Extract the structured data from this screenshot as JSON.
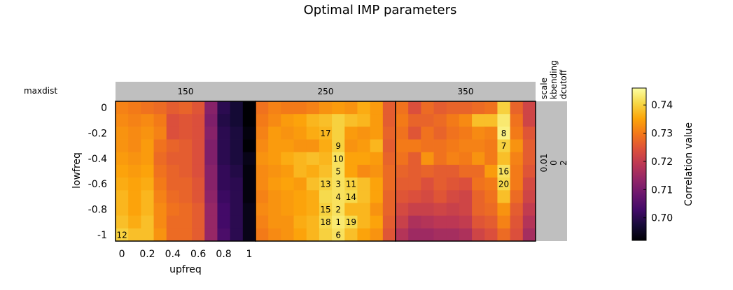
{
  "chart_data": {
    "type": "heatmap",
    "title": "Optimal IMP parameters",
    "xlabel": "upfreq",
    "ylabel": "lowfreq",
    "x_ticks": [
      "0",
      "0.2",
      "0.4",
      "0.6",
      "0.8",
      "1"
    ],
    "y_ticks": [
      "0",
      "-0.2",
      "-0.4",
      "-0.6",
      "-0.8",
      "-1"
    ],
    "x_range": [
      0,
      1
    ],
    "y_range": [
      -1,
      0
    ],
    "facet_row_header": "maxdist",
    "facets": [
      "150",
      "250",
      "350"
    ],
    "right_strip_headers": [
      "scale",
      "kbending",
      "dcutoff"
    ],
    "right_strip_values": [
      "0.01",
      "0",
      "2"
    ],
    "colorbar": {
      "label": "Correlation value",
      "range": [
        0.692,
        0.746
      ],
      "ticks": [
        "0.70",
        "0.71",
        "0.72",
        "0.73",
        "0.74"
      ],
      "tick_values": [
        0.7,
        0.71,
        0.72,
        0.73,
        0.74
      ],
      "colormap": "inferno"
    },
    "panels": [
      {
        "maxdist": "150",
        "values": [
          [
            0.731,
            0.73,
            0.729,
            0.728,
            0.726,
            0.727,
            0.725,
            0.712,
            0.7,
            0.697,
            0.692
          ],
          [
            0.732,
            0.731,
            0.732,
            0.73,
            0.724,
            0.725,
            0.724,
            0.711,
            0.699,
            0.697,
            0.692
          ],
          [
            0.733,
            0.732,
            0.733,
            0.731,
            0.724,
            0.725,
            0.724,
            0.712,
            0.7,
            0.698,
            0.693
          ],
          [
            0.733,
            0.732,
            0.734,
            0.729,
            0.727,
            0.726,
            0.724,
            0.711,
            0.7,
            0.698,
            0.692
          ],
          [
            0.734,
            0.733,
            0.734,
            0.728,
            0.726,
            0.726,
            0.724,
            0.711,
            0.7,
            0.698,
            0.694
          ],
          [
            0.735,
            0.734,
            0.735,
            0.729,
            0.727,
            0.726,
            0.724,
            0.712,
            0.701,
            0.699,
            0.693
          ],
          [
            0.736,
            0.735,
            0.736,
            0.73,
            0.727,
            0.727,
            0.725,
            0.712,
            0.701,
            0.7,
            0.693
          ],
          [
            0.737,
            0.735,
            0.737,
            0.731,
            0.728,
            0.727,
            0.725,
            0.713,
            0.702,
            0.7,
            0.693
          ],
          [
            0.737,
            0.735,
            0.737,
            0.732,
            0.729,
            0.728,
            0.726,
            0.714,
            0.703,
            0.7,
            0.694
          ],
          [
            0.738,
            0.736,
            0.738,
            0.732,
            0.728,
            0.728,
            0.726,
            0.714,
            0.703,
            0.7,
            0.694
          ],
          [
            0.74,
            0.738,
            0.738,
            0.733,
            0.728,
            0.728,
            0.726,
            0.714,
            0.704,
            0.7,
            0.694
          ]
        ]
      },
      {
        "maxdist": "250",
        "values": [
          [
            0.729,
            0.731,
            0.73,
            0.73,
            0.731,
            0.733,
            0.734,
            0.733,
            0.736,
            0.734,
            0.726
          ],
          [
            0.73,
            0.732,
            0.734,
            0.735,
            0.737,
            0.738,
            0.74,
            0.738,
            0.737,
            0.734,
            0.726
          ],
          [
            0.731,
            0.734,
            0.733,
            0.734,
            0.736,
            0.737,
            0.74,
            0.734,
            0.733,
            0.734,
            0.727
          ],
          [
            0.732,
            0.734,
            0.734,
            0.733,
            0.733,
            0.736,
            0.74,
            0.733,
            0.734,
            0.737,
            0.726
          ],
          [
            0.733,
            0.734,
            0.736,
            0.737,
            0.738,
            0.737,
            0.742,
            0.735,
            0.735,
            0.734,
            0.727
          ],
          [
            0.732,
            0.733,
            0.734,
            0.737,
            0.736,
            0.738,
            0.742,
            0.735,
            0.732,
            0.733,
            0.728
          ],
          [
            0.732,
            0.734,
            0.735,
            0.734,
            0.738,
            0.74,
            0.742,
            0.74,
            0.738,
            0.735,
            0.728
          ],
          [
            0.731,
            0.733,
            0.734,
            0.735,
            0.736,
            0.741,
            0.742,
            0.741,
            0.738,
            0.735,
            0.727
          ],
          [
            0.732,
            0.733,
            0.734,
            0.735,
            0.736,
            0.74,
            0.742,
            0.737,
            0.737,
            0.733,
            0.727
          ],
          [
            0.731,
            0.733,
            0.733,
            0.736,
            0.737,
            0.741,
            0.743,
            0.741,
            0.737,
            0.735,
            0.726
          ],
          [
            0.73,
            0.732,
            0.733,
            0.735,
            0.737,
            0.74,
            0.742,
            0.738,
            0.735,
            0.733,
            0.725
          ]
        ]
      },
      {
        "maxdist": "350",
        "values": [
          [
            0.729,
            0.724,
            0.728,
            0.726,
            0.727,
            0.727,
            0.728,
            0.729,
            0.74,
            0.727,
            0.722
          ],
          [
            0.73,
            0.727,
            0.727,
            0.728,
            0.73,
            0.732,
            0.738,
            0.738,
            0.743,
            0.729,
            0.722
          ],
          [
            0.729,
            0.725,
            0.729,
            0.727,
            0.729,
            0.73,
            0.732,
            0.731,
            0.744,
            0.73,
            0.725
          ],
          [
            0.73,
            0.73,
            0.729,
            0.729,
            0.73,
            0.731,
            0.731,
            0.73,
            0.74,
            0.733,
            0.726
          ],
          [
            0.729,
            0.726,
            0.733,
            0.729,
            0.731,
            0.73,
            0.733,
            0.73,
            0.738,
            0.731,
            0.726
          ],
          [
            0.727,
            0.726,
            0.727,
            0.726,
            0.726,
            0.728,
            0.728,
            0.734,
            0.742,
            0.73,
            0.725
          ],
          [
            0.726,
            0.726,
            0.724,
            0.726,
            0.725,
            0.724,
            0.729,
            0.73,
            0.741,
            0.73,
            0.723
          ],
          [
            0.725,
            0.724,
            0.723,
            0.725,
            0.723,
            0.722,
            0.727,
            0.729,
            0.738,
            0.728,
            0.722
          ],
          [
            0.723,
            0.721,
            0.721,
            0.722,
            0.721,
            0.722,
            0.727,
            0.728,
            0.733,
            0.726,
            0.72
          ],
          [
            0.721,
            0.717,
            0.718,
            0.719,
            0.719,
            0.72,
            0.725,
            0.726,
            0.731,
            0.725,
            0.718
          ],
          [
            0.718,
            0.715,
            0.715,
            0.716,
            0.716,
            0.717,
            0.722,
            0.724,
            0.728,
            0.724,
            0.716
          ]
        ]
      }
    ],
    "annotations": [
      {
        "panel": 0,
        "x": 0.0,
        "y": -1.0,
        "text": "12"
      },
      {
        "panel": 1,
        "x": 0.5,
        "y": -0.2,
        "text": "17"
      },
      {
        "panel": 1,
        "x": 0.6,
        "y": -0.3,
        "text": "9"
      },
      {
        "panel": 1,
        "x": 0.6,
        "y": -0.4,
        "text": "10"
      },
      {
        "panel": 1,
        "x": 0.6,
        "y": -0.5,
        "text": "5"
      },
      {
        "panel": 1,
        "x": 0.5,
        "y": -0.6,
        "text": "13"
      },
      {
        "panel": 1,
        "x": 0.6,
        "y": -0.6,
        "text": "3"
      },
      {
        "panel": 1,
        "x": 0.7,
        "y": -0.6,
        "text": "11"
      },
      {
        "panel": 1,
        "x": 0.6,
        "y": -0.7,
        "text": "4"
      },
      {
        "panel": 1,
        "x": 0.7,
        "y": -0.7,
        "text": "14"
      },
      {
        "panel": 1,
        "x": 0.5,
        "y": -0.8,
        "text": "15"
      },
      {
        "panel": 1,
        "x": 0.6,
        "y": -0.8,
        "text": "2"
      },
      {
        "panel": 1,
        "x": 0.5,
        "y": -0.9,
        "text": "18"
      },
      {
        "panel": 1,
        "x": 0.6,
        "y": -0.9,
        "text": "1"
      },
      {
        "panel": 1,
        "x": 0.7,
        "y": -0.9,
        "text": "19"
      },
      {
        "panel": 1,
        "x": 0.6,
        "y": -1.0,
        "text": "6"
      },
      {
        "panel": 2,
        "x": 0.8,
        "y": -0.2,
        "text": "8"
      },
      {
        "panel": 2,
        "x": 0.8,
        "y": -0.3,
        "text": "7"
      },
      {
        "panel": 2,
        "x": 0.8,
        "y": -0.5,
        "text": "16"
      },
      {
        "panel": 2,
        "x": 0.8,
        "y": -0.6,
        "text": "20"
      }
    ],
    "colors": {
      "strip_background": "#bfbfbf",
      "frame": "#000000"
    }
  }
}
